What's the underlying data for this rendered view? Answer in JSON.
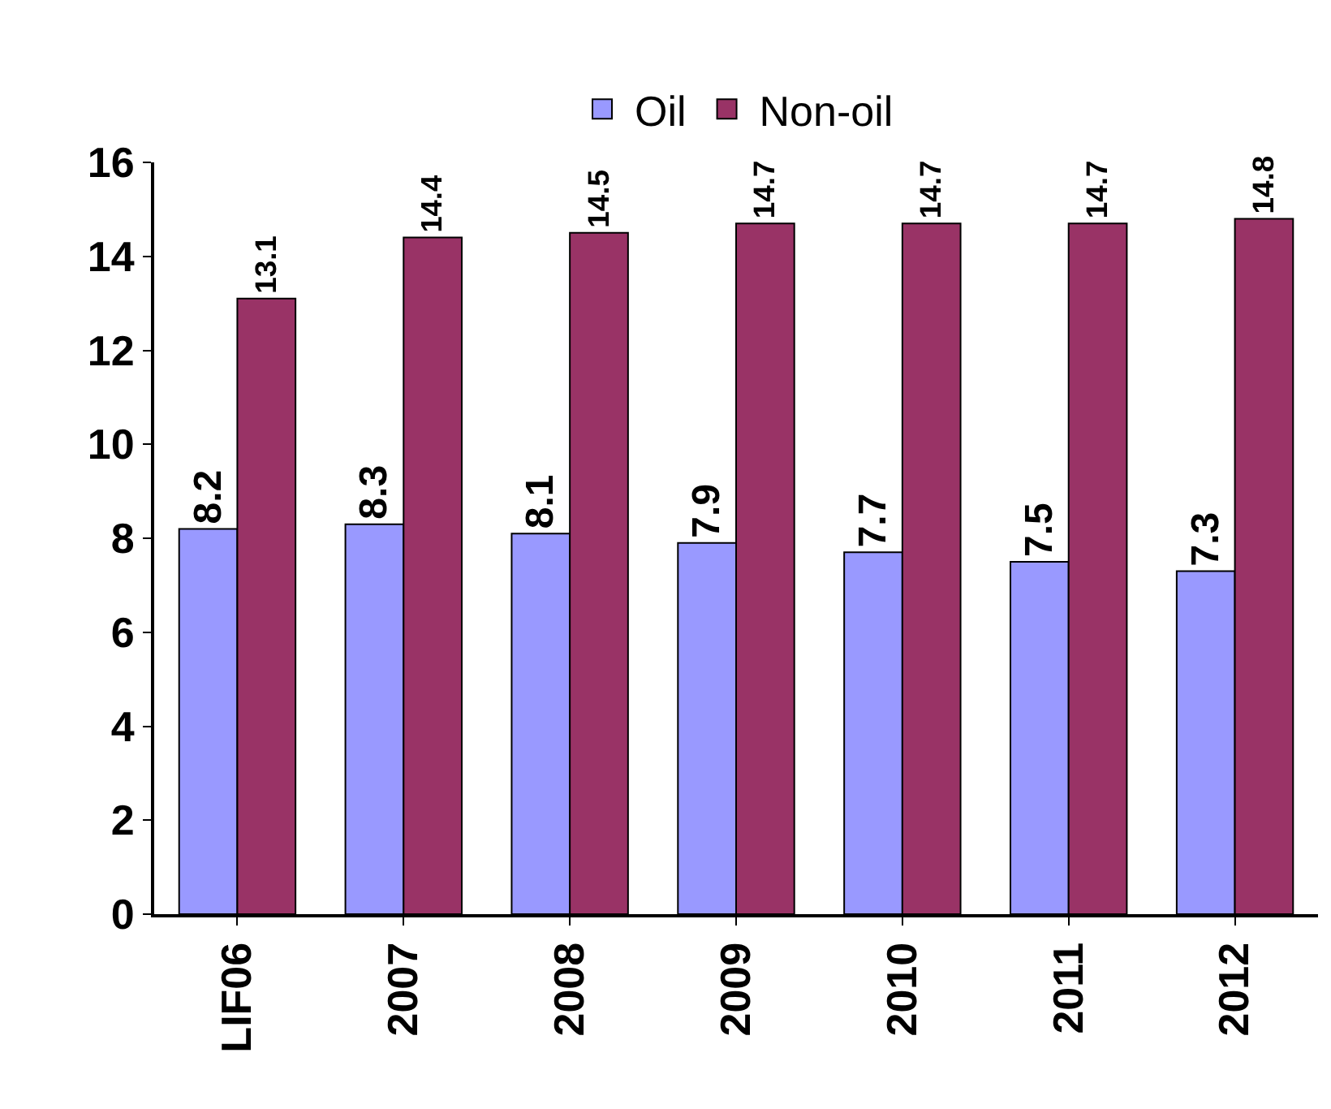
{
  "chart_data": {
    "type": "bar",
    "categories": [
      "LIF06",
      "2007",
      "2008",
      "2009",
      "2010",
      "2011",
      "2012"
    ],
    "series": [
      {
        "name": "Oil",
        "color": "#9999ff",
        "values": [
          8.2,
          8.3,
          8.1,
          7.9,
          7.7,
          7.5,
          7.3
        ]
      },
      {
        "name": "Non-oil",
        "color": "#993366",
        "values": [
          13.1,
          14.4,
          14.5,
          14.7,
          14.7,
          14.7,
          14.8
        ]
      }
    ],
    "ylim": [
      0,
      16
    ],
    "yticks": [
      0,
      2,
      4,
      6,
      8,
      10,
      12,
      14,
      16
    ],
    "grid": false,
    "legend": "top",
    "data_labels": true
  }
}
